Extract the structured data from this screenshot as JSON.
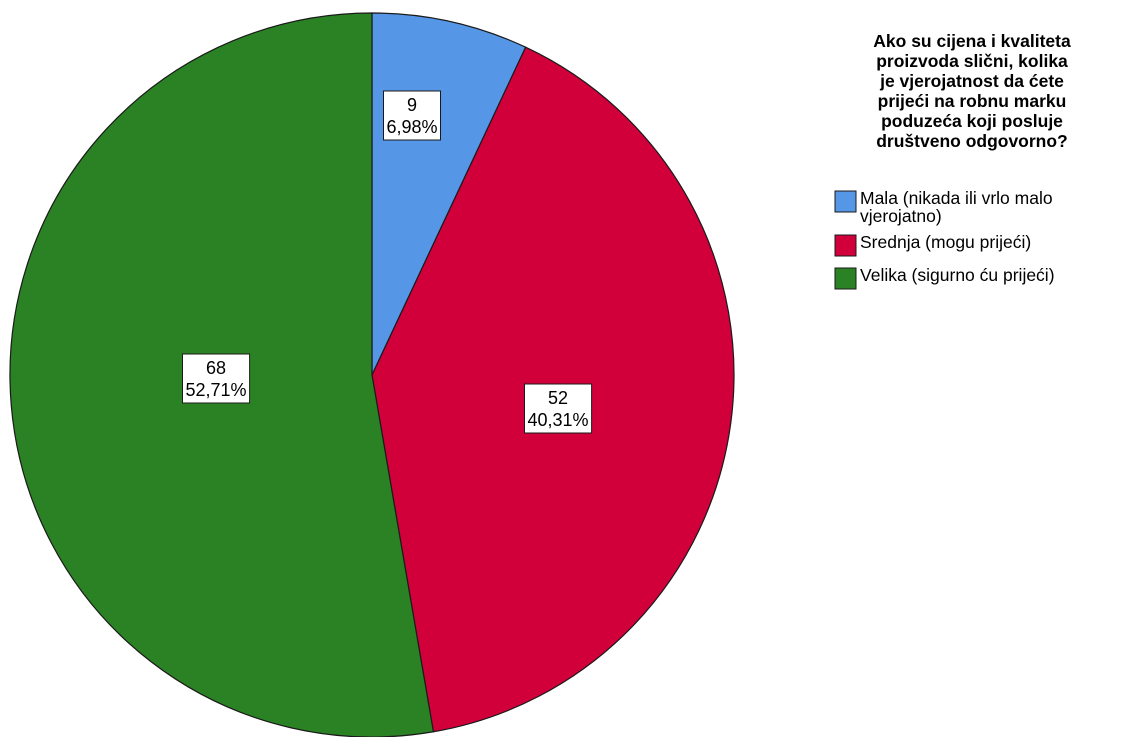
{
  "chart_data": {
    "type": "pie",
    "legend_title": [
      "Ako su cijena i kvaliteta",
      "proizvoda slični, kolika",
      "je vjerojatnost da ćete",
      "prijeći na robnu marku",
      "poduzeća koji posluje",
      "društveno odgovorno?"
    ],
    "legend_placement": "top-right",
    "start_angle_deg": 0,
    "direction": "clockwise",
    "slices": [
      {
        "label": [
          "Mala (nikada ili vrlo malo",
          "vjerojatno)"
        ],
        "value": 9,
        "percent": "6,98%",
        "color": "#5596e6"
      },
      {
        "label": [
          "Srednja (mogu prijeći)"
        ],
        "value": 52,
        "percent": "40,31%",
        "color": "#d1003a"
      },
      {
        "label": [
          "Velika (sigurno ću prijeći)"
        ],
        "value": 68,
        "percent": "52,71%",
        "color": "#2b8225"
      }
    ]
  }
}
